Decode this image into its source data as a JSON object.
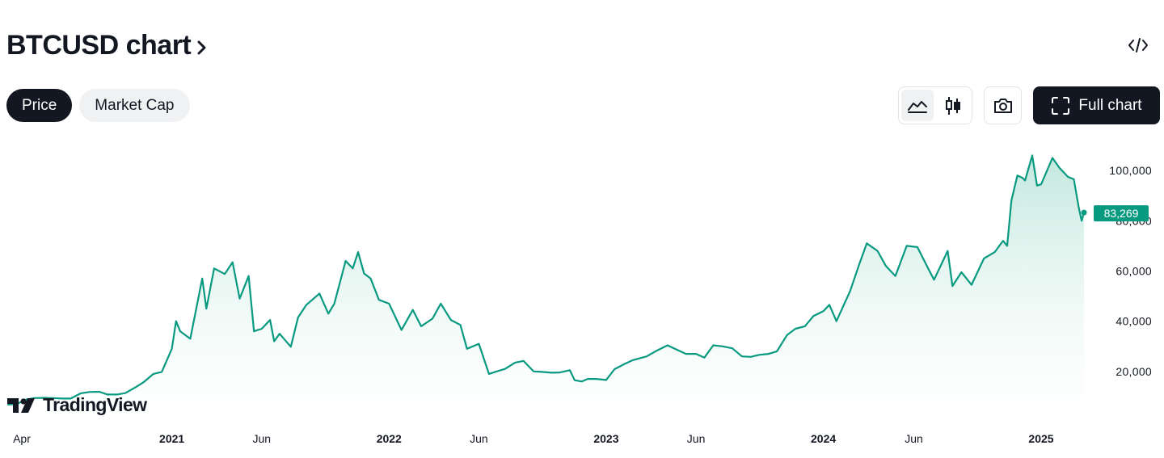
{
  "header": {
    "title": "BTCUSD chart",
    "chevron_icon": "chevron-right-icon",
    "embed_icon": "code-embed-icon"
  },
  "tabs": [
    {
      "label": "Price",
      "active": true
    },
    {
      "label": "Market Cap",
      "active": false
    }
  ],
  "toolbar": {
    "area_icon": "area-chart-icon",
    "candles_icon": "candlestick-icon",
    "snapshot_icon": "camera-icon",
    "full_chart_icon": "fullscreen-icon",
    "full_chart_label": "Full chart"
  },
  "logo": {
    "text": "TradingView",
    "icon": "tradingview-logo-icon"
  },
  "colors": {
    "line": "#089981",
    "fill_top": "#c7e9e0",
    "label_bg": "#089981",
    "text": "#131722",
    "active_tab": "#131722"
  },
  "chart_data": {
    "type": "area",
    "symbol": "BTCUSD",
    "series": [
      {
        "x": [
          "2020-04-01",
          "2020-04-15",
          "2020-05-01",
          "2020-05-15",
          "2020-06-01",
          "2020-06-15",
          "2020-07-01",
          "2020-07-15",
          "2020-08-01",
          "2020-08-15",
          "2020-09-01",
          "2020-09-15",
          "2020-10-01",
          "2020-10-15",
          "2020-11-01",
          "2020-11-15",
          "2020-12-01",
          "2020-12-15",
          "2021-01-01",
          "2021-01-08",
          "2021-01-15",
          "2021-02-01",
          "2021-02-21",
          "2021-02-28",
          "2021-03-13",
          "2021-03-31",
          "2021-04-13",
          "2021-04-25",
          "2021-05-10",
          "2021-05-19",
          "2021-06-01",
          "2021-06-15",
          "2021-06-22",
          "2021-07-01",
          "2021-07-20",
          "2021-08-01",
          "2021-08-15",
          "2021-09-06",
          "2021-09-21",
          "2021-10-01",
          "2021-10-20",
          "2021-11-01",
          "2021-11-10",
          "2021-11-20",
          "2021-12-01",
          "2021-12-15",
          "2022-01-01",
          "2022-01-22",
          "2022-02-10",
          "2022-02-24",
          "2022-03-15",
          "2022-03-29",
          "2022-04-15",
          "2022-05-01",
          "2022-05-12",
          "2022-06-01",
          "2022-06-18",
          "2022-07-01",
          "2022-07-15",
          "2022-08-01",
          "2022-08-15",
          "2022-09-01",
          "2022-09-15",
          "2022-10-01",
          "2022-10-15",
          "2022-11-01",
          "2022-11-09",
          "2022-11-21",
          "2022-12-01",
          "2022-12-15",
          "2023-01-01",
          "2023-01-15",
          "2023-02-01",
          "2023-02-15",
          "2023-03-10",
          "2023-03-25",
          "2023-04-14",
          "2023-05-01",
          "2023-05-15",
          "2023-06-01",
          "2023-06-15",
          "2023-06-30",
          "2023-07-15",
          "2023-08-01",
          "2023-08-17",
          "2023-09-01",
          "2023-09-15",
          "2023-10-01",
          "2023-10-15",
          "2023-11-01",
          "2023-11-15",
          "2023-12-01",
          "2023-12-15",
          "2024-01-01",
          "2024-01-11",
          "2024-01-23",
          "2024-02-15",
          "2024-03-01",
          "2024-03-14",
          "2024-04-01",
          "2024-04-15",
          "2024-05-01",
          "2024-05-20",
          "2024-06-07",
          "2024-06-25",
          "2024-07-05",
          "2024-07-28",
          "2024-08-05",
          "2024-08-20",
          "2024-09-06",
          "2024-09-27",
          "2024-10-15",
          "2024-10-29",
          "2024-11-05",
          "2024-11-12",
          "2024-11-22",
          "2024-12-01",
          "2024-12-05",
          "2024-12-17",
          "2024-12-25",
          "2025-01-01",
          "2025-01-20",
          "2025-02-01",
          "2025-02-15",
          "2025-02-25",
          "2025-03-05",
          "2025-03-10",
          "2025-03-14"
        ],
        "y": [
          6800,
          7000,
          8800,
          9400,
          9500,
          9400,
          9200,
          9200,
          11300,
          11800,
          11900,
          10800,
          10800,
          11400,
          13700,
          15800,
          19000,
          19800,
          29000,
          40000,
          36000,
          33000,
          57000,
          45000,
          61000,
          58800,
          63500,
          49000,
          58000,
          36000,
          37000,
          40500,
          32000,
          35000,
          29800,
          41500,
          46500,
          51000,
          43000,
          47000,
          64000,
          61000,
          67500,
          59000,
          57000,
          48500,
          47000,
          36500,
          44500,
          38000,
          41000,
          47000,
          40500,
          38500,
          29000,
          31000,
          19000,
          20000,
          21000,
          23500,
          24200,
          20000,
          19800,
          19500,
          19600,
          20500,
          16500,
          16000,
          17000,
          17000,
          16600,
          20900,
          23000,
          24500,
          26000,
          28000,
          30400,
          28500,
          27000,
          27000,
          25500,
          30400,
          30000,
          29200,
          26000,
          25800,
          26600,
          27000,
          28000,
          34500,
          37000,
          38000,
          42000,
          44000,
          46500,
          40000,
          52000,
          62500,
          71000,
          68000,
          62000,
          58000,
          70000,
          69500,
          61000,
          56500,
          68000,
          54000,
          59500,
          54500,
          65000,
          67500,
          72000,
          70000,
          88000,
          98000,
          97000,
          96000,
          106000,
          94000,
          94500,
          105000,
          101000,
          97500,
          96500,
          85500,
          80000,
          83269
        ]
      }
    ],
    "last_value": "83,269",
    "yticks": [
      "20,000",
      "40,000",
      "60,000",
      "80,000",
      "100,000"
    ],
    "xticks": [
      {
        "label": "Apr",
        "date": "2020-04-01",
        "bold": false
      },
      {
        "label": "2021",
        "date": "2021-01-01",
        "bold": true
      },
      {
        "label": "Jun",
        "date": "2021-06-01",
        "bold": false
      },
      {
        "label": "2022",
        "date": "2022-01-01",
        "bold": true
      },
      {
        "label": "Jun",
        "date": "2022-06-01",
        "bold": false
      },
      {
        "label": "2023",
        "date": "2023-01-01",
        "bold": true
      },
      {
        "label": "Jun",
        "date": "2023-06-01",
        "bold": false
      },
      {
        "label": "2024",
        "date": "2024-01-01",
        "bold": true
      },
      {
        "label": "Jun",
        "date": "2024-06-01",
        "bold": false
      },
      {
        "label": "2025",
        "date": "2025-01-01",
        "bold": true
      }
    ],
    "ylim": [
      0,
      110000
    ],
    "xlim": [
      "2020-03-29",
      "2025-03-14"
    ],
    "grid": false,
    "legend": "none"
  }
}
